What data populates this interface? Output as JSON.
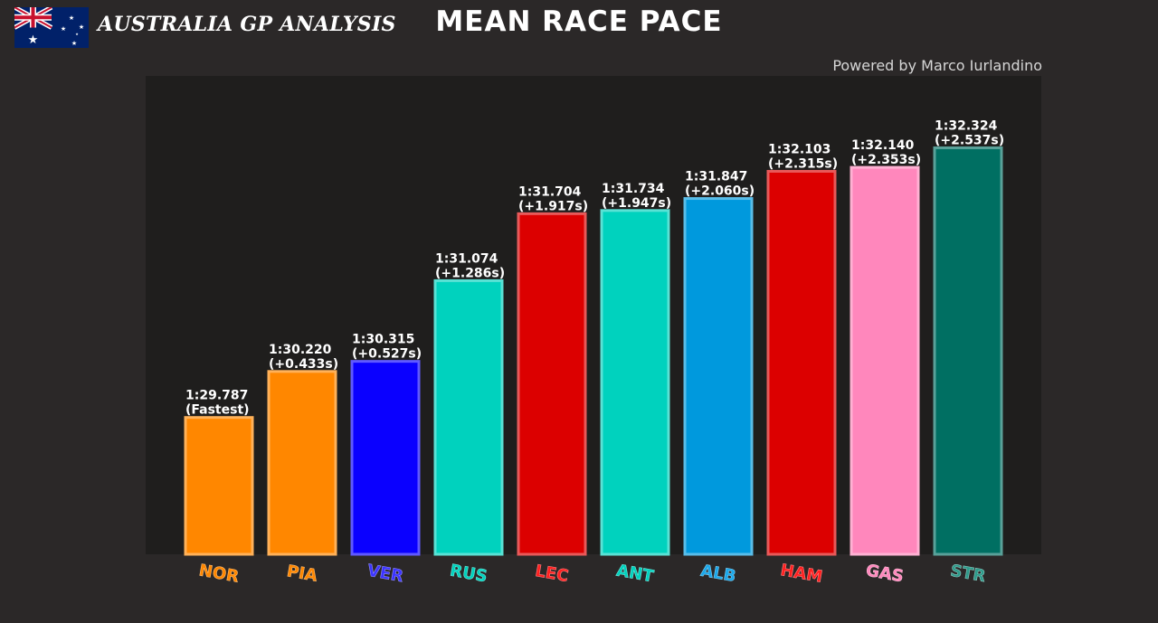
{
  "header": {
    "gp_title": "AUSTRALIA GP ANALYSIS",
    "credit": "Powered by Marco Iurlandino",
    "flag_icon": "australia-flag-icon"
  },
  "colors": {
    "page_bg": "#2b2828",
    "plot_bg": "#1f1e1d",
    "label_text": "#ffffff"
  },
  "chart_data": {
    "type": "bar",
    "title": "MEAN RACE PACE",
    "xlabel": "",
    "ylabel": "",
    "ylim_seconds": [
      88.5,
      93.0
    ],
    "grid": false,
    "legend": "none",
    "categories": [
      "NOR",
      "PIA",
      "VER",
      "RUS",
      "LEC",
      "ANT",
      "ALB",
      "HAM",
      "GAS",
      "STR"
    ],
    "values_seconds": [
      89.787,
      90.22,
      90.315,
      91.074,
      91.704,
      91.734,
      91.847,
      92.103,
      92.14,
      92.324
    ],
    "time_labels": [
      "1:29.787",
      "1:30.220",
      "1:30.315",
      "1:31.074",
      "1:31.704",
      "1:31.734",
      "1:31.847",
      "1:32.103",
      "1:32.140",
      "1:32.324"
    ],
    "gap_labels": [
      "(Fastest)",
      "(+0.433s)",
      "(+0.527s)",
      "(+1.286s)",
      "(+1.917s)",
      "(+1.947s)",
      "(+2.060s)",
      "(+2.315s)",
      "(+2.353s)",
      "(+2.537s)"
    ],
    "bar_colors": [
      "#ff8700",
      "#ff8700",
      "#0a00ff",
      "#00d2be",
      "#dc0000",
      "#00d2be",
      "#0099dd",
      "#dc0000",
      "#ff87bc",
      "#006f62"
    ],
    "tick_colors": [
      "#ff8700",
      "#ff8700",
      "#3b33ff",
      "#00d2be",
      "#ff2020",
      "#00d2be",
      "#1aa7ea",
      "#ff2020",
      "#ff87bc",
      "#2e9a8a"
    ]
  }
}
